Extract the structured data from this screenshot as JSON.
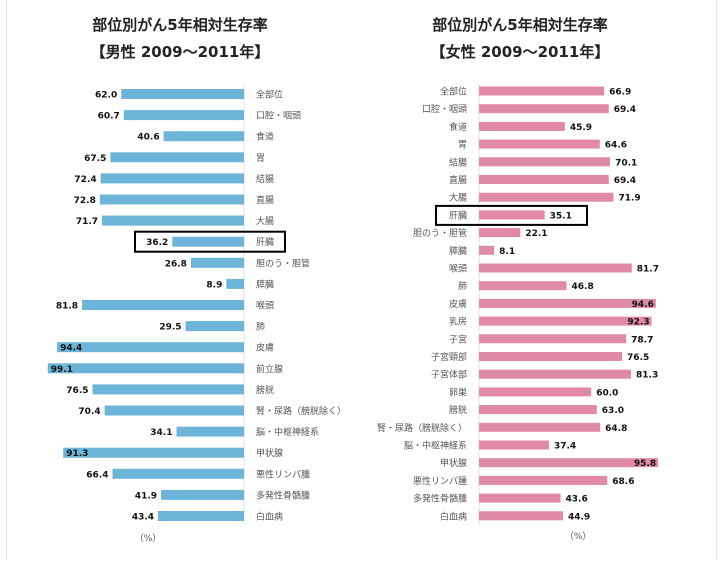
{
  "chart_data": [
    {
      "type": "bar",
      "orientation": "horizontal",
      "title": "部位別がん5年相対生存率",
      "subtitle": "【男性 2009～2011年】",
      "unit": "（%）",
      "categories": [
        "全部位",
        "口腔・咽頭",
        "食道",
        "胃",
        "結腸",
        "直腸",
        "大腸",
        "肝臓",
        "胆のう・胆管",
        "膵臓",
        "喉頭",
        "肺",
        "皮膚",
        "前立腺",
        "膀胱",
        "腎・尿路（膀胱除く）",
        "脳・中枢神経系",
        "甲状腺",
        "悪性リンパ腫",
        "多発性骨髄腫",
        "白血病"
      ],
      "values": [
        62.0,
        60.7,
        40.6,
        67.5,
        72.4,
        72.8,
        71.7,
        36.2,
        26.8,
        8.9,
        81.8,
        29.5,
        94.4,
        99.1,
        76.5,
        70.4,
        34.1,
        91.3,
        66.4,
        41.9,
        43.4
      ],
      "value_labels": [
        "62.0",
        "60.7",
        "40.6",
        "67.5",
        "72.4",
        "72.8",
        "71.7",
        "36.2",
        "26.8",
        "8.9",
        "81.8",
        "29.5",
        "94.4",
        "99.1",
        "76.5",
        "70.4",
        "34.1",
        "91.3",
        "66.4",
        "41.9",
        "43.4"
      ],
      "highlight": "肝臓",
      "bar_color": "#6cb4d8",
      "xlim": [
        0,
        100
      ]
    },
    {
      "type": "bar",
      "orientation": "horizontal",
      "title": "部位別がん5年相対生存率",
      "subtitle": "【女性 2009～2011年】",
      "unit": "（%）",
      "categories": [
        "全部位",
        "口腔・咽頭",
        "食道",
        "胃",
        "結腸",
        "直腸",
        "大腸",
        "肝臓",
        "胆のう・胆管",
        "膵臓",
        "喉頭",
        "肺",
        "皮膚",
        "乳房",
        "子宮",
        "子宮頸部",
        "子宮体部",
        "卵巣",
        "膀胱",
        "腎・尿路（膀胱除く）",
        "脳・中枢神経系",
        "甲状腺",
        "悪性リンパ腫",
        "多発性骨髄腫",
        "白血病"
      ],
      "values": [
        66.9,
        69.4,
        45.9,
        64.6,
        70.1,
        69.4,
        71.9,
        35.1,
        22.1,
        8.1,
        81.7,
        46.8,
        94.6,
        92.3,
        78.7,
        76.5,
        81.3,
        60.0,
        63.0,
        64.8,
        37.4,
        95.8,
        68.6,
        43.6,
        44.9
      ],
      "value_labels": [
        "66.9",
        "69.4",
        "45.9",
        "64.6",
        "70.1",
        "69.4",
        "71.9",
        "35.1",
        "22.1",
        "8.1",
        "81.7",
        "46.8",
        "94.6",
        "92.3",
        "78.7",
        "76.5",
        "81.3",
        "60.0",
        "63.0",
        "64.8",
        "37.4",
        "95.8",
        "68.6",
        "43.6",
        "44.9"
      ],
      "highlight": "肝臓",
      "bar_color": "#e089a8",
      "xlim": [
        0,
        100
      ]
    }
  ]
}
